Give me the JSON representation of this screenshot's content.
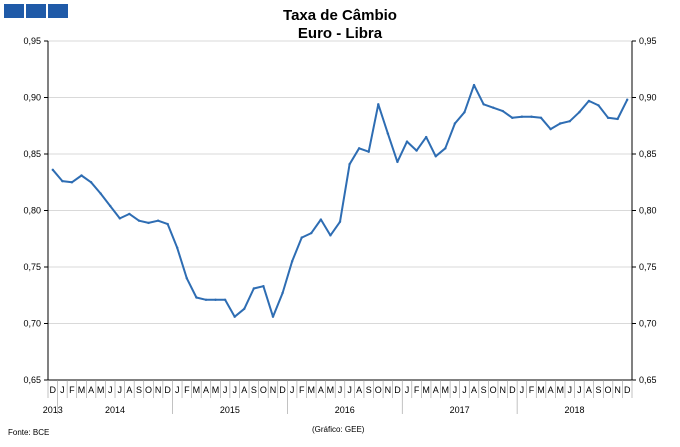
{
  "header": {
    "logo_icon": "three-blue-squares-icon",
    "title": "Taxa de Câmbio",
    "subtitle": "Euro - Libra"
  },
  "footer": {
    "source": "Fonte: BCE",
    "credit": "(Gráfico: GEE)"
  },
  "chart_data": {
    "type": "line",
    "title": "Taxa de Câmbio",
    "subtitle": "Euro - Libra",
    "xlabel": "",
    "ylabel": "",
    "ylim": [
      0.65,
      0.95
    ],
    "y_ticks": [
      "0,65",
      "0,70",
      "0,75",
      "0,80",
      "0,85",
      "0,90",
      "0,95"
    ],
    "y_tick_values": [
      0.65,
      0.7,
      0.75,
      0.8,
      0.85,
      0.9,
      0.95
    ],
    "secondary_y_axis": true,
    "grid": "horizontal",
    "legend": "none",
    "line_color": "#2e6db3",
    "x_month_labels": [
      "D",
      "J",
      "F",
      "M",
      "A",
      "M",
      "J",
      "J",
      "A",
      "S",
      "O",
      "N",
      "D",
      "J",
      "F",
      "M",
      "A",
      "M",
      "J",
      "J",
      "A",
      "S",
      "O",
      "N",
      "D",
      "J",
      "F",
      "M",
      "A",
      "M",
      "J",
      "J",
      "A",
      "S",
      "O",
      "N",
      "D",
      "J",
      "F",
      "M",
      "A",
      "M",
      "J",
      "J",
      "A",
      "S",
      "O",
      "N",
      "D",
      "J",
      "F",
      "M",
      "A",
      "M",
      "J",
      "J",
      "A",
      "S",
      "O",
      "N",
      "D"
    ],
    "x_year_labels": [
      "2013",
      "2014",
      "2015",
      "2016",
      "2017",
      "2018"
    ],
    "x": [
      "2013-12",
      "2014-01",
      "2014-02",
      "2014-03",
      "2014-04",
      "2014-05",
      "2014-06",
      "2014-07",
      "2014-08",
      "2014-09",
      "2014-10",
      "2014-11",
      "2014-12",
      "2015-01",
      "2015-02",
      "2015-03",
      "2015-04",
      "2015-05",
      "2015-06",
      "2015-07",
      "2015-08",
      "2015-09",
      "2015-10",
      "2015-11",
      "2015-12",
      "2016-01",
      "2016-02",
      "2016-03",
      "2016-04",
      "2016-05",
      "2016-06",
      "2016-07",
      "2016-08",
      "2016-09",
      "2016-10",
      "2016-11",
      "2016-12",
      "2017-01",
      "2017-02",
      "2017-03",
      "2017-04",
      "2017-05",
      "2017-06",
      "2017-07",
      "2017-08",
      "2017-09",
      "2017-10",
      "2017-11",
      "2017-12",
      "2018-01",
      "2018-02",
      "2018-03",
      "2018-04",
      "2018-05",
      "2018-06",
      "2018-07",
      "2018-08",
      "2018-09",
      "2018-10",
      "2018-11",
      "2018-12"
    ],
    "series": [
      {
        "values": [
          0.836,
          0.826,
          0.825,
          0.831,
          0.825,
          0.815,
          0.804,
          0.793,
          0.797,
          0.791,
          0.789,
          0.791,
          0.788,
          0.767,
          0.74,
          0.723,
          0.721,
          0.721,
          0.721,
          0.706,
          0.713,
          0.731,
          0.733,
          0.706,
          0.727,
          0.755,
          0.776,
          0.78,
          0.792,
          0.778,
          0.79,
          0.841,
          0.855,
          0.852,
          0.894,
          0.868,
          0.843,
          0.861,
          0.853,
          0.865,
          0.848,
          0.855,
          0.877,
          0.887,
          0.911,
          0.894,
          0.891,
          0.888,
          0.882,
          0.883,
          0.883,
          0.882,
          0.872,
          0.877,
          0.879,
          0.887,
          0.897,
          0.893,
          0.882,
          0.881,
          0.898
        ]
      }
    ]
  }
}
